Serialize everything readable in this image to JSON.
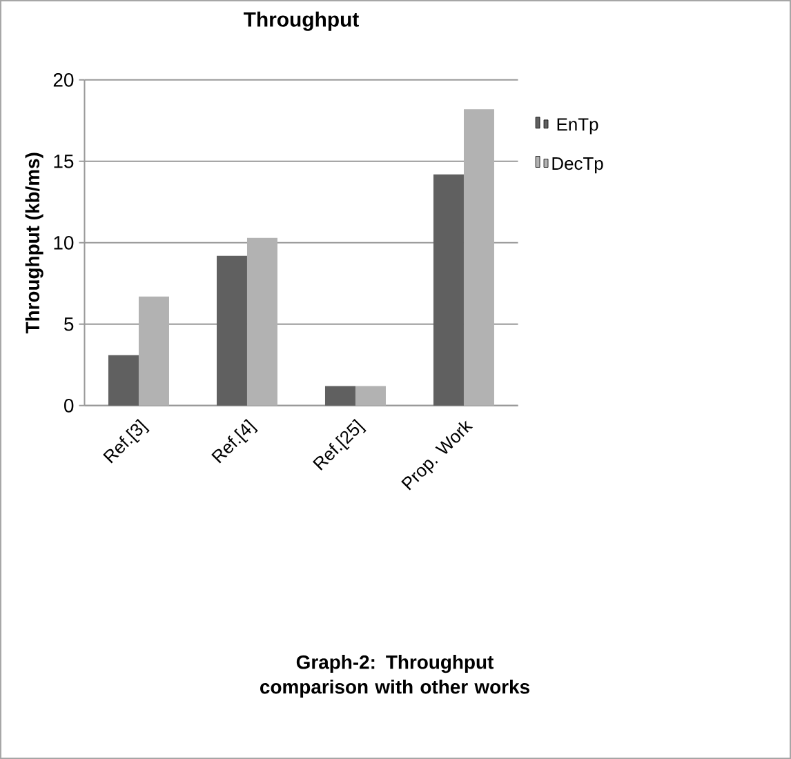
{
  "chart_data": {
    "type": "bar",
    "title": "Throughput",
    "ylabel": "Throughput (kb/ms)",
    "categories": [
      "Ref.[3]",
      "Ref.[4]",
      "Ref.[25]",
      "Prop. Work"
    ],
    "series": [
      {
        "name": "EnTp",
        "color": "#606060",
        "values": [
          3.1,
          9.2,
          1.2,
          14.2
        ]
      },
      {
        "name": "DecTp",
        "color": "#b2b2b2",
        "values": [
          6.7,
          10.3,
          1.2,
          18.2
        ]
      }
    ],
    "ylim": [
      0,
      20
    ],
    "yticks": [
      0,
      5,
      10,
      15,
      20
    ],
    "grid": "y",
    "legend": "right",
    "annotations": [
      "Graph-2: Throughput comparison with other works"
    ]
  }
}
